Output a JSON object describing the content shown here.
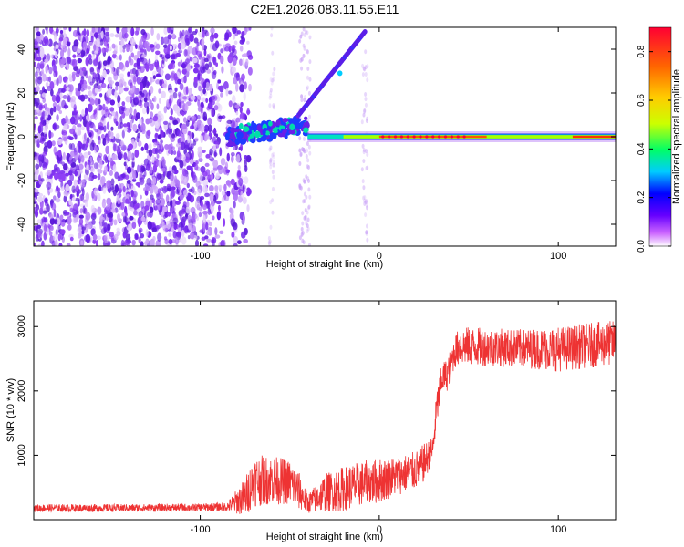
{
  "figure_title": "C2E1.2026.083.11.55.E11",
  "chart_data": [
    {
      "type": "heatmap",
      "title": "C2E1.2026.083.11.55.E11",
      "xlabel": "Height of straight line (km)",
      "ylabel": "Frequency (Hz)",
      "xlim": [
        -193,
        132
      ],
      "ylim": [
        -50,
        50
      ],
      "xticks": [
        -100,
        0,
        100
      ],
      "yticks": [
        -40,
        -20,
        0,
        20,
        40
      ],
      "colorbar": {
        "label": "Normalized spectral amplitude",
        "range": [
          0.0,
          0.9
        ],
        "ticks": [
          0.0,
          0.2,
          0.4,
          0.6,
          0.8
        ],
        "colormap": [
          "#ffffff",
          "#cc66ff",
          "#6600ff",
          "#0000ff",
          "#00ccff",
          "#00ff66",
          "#ccff00",
          "#ffcc00",
          "#ff6600",
          "#ff0033"
        ]
      },
      "features": {
        "noise_region_x": [
          -193,
          -80
        ],
        "carrier_frequency_hz": 0,
        "carrier_start_x": -40,
        "chirp_line": {
          "x_start": -45,
          "x_end": -8,
          "y_start": 10,
          "y_end": 48
        }
      }
    },
    {
      "type": "line",
      "xlabel": "Height of straight line (km)",
      "ylabel": "SNR (10 * v/v)",
      "xlim": [
        -193,
        132
      ],
      "ylim": [
        0,
        3400
      ],
      "xticks": [
        -100,
        0,
        100
      ],
      "yticks": [
        1000,
        2000,
        3000
      ],
      "series": [
        {
          "name": "SNR",
          "color": "#ee3333",
          "x": [
            -193,
            -150,
            -100,
            -85,
            -75,
            -70,
            -60,
            -50,
            -45,
            -40,
            -30,
            -20,
            -10,
            0,
            10,
            20,
            25,
            30,
            32,
            35,
            38,
            42,
            45,
            60,
            80,
            100,
            115,
            132
          ],
          "values": [
            180,
            180,
            190,
            200,
            350,
            600,
            620,
            580,
            450,
            250,
            420,
            480,
            560,
            600,
            680,
            760,
            880,
            1100,
            1700,
            2200,
            2250,
            2600,
            2700,
            2680,
            2660,
            2650,
            2700,
            2750
          ],
          "amplitude": [
            60,
            60,
            60,
            70,
            300,
            400,
            380,
            350,
            300,
            150,
            300,
            350,
            350,
            350,
            300,
            300,
            300,
            200,
            300,
            250,
            250,
            250,
            300,
            300,
            300,
            350,
            350,
            350
          ]
        }
      ]
    }
  ]
}
